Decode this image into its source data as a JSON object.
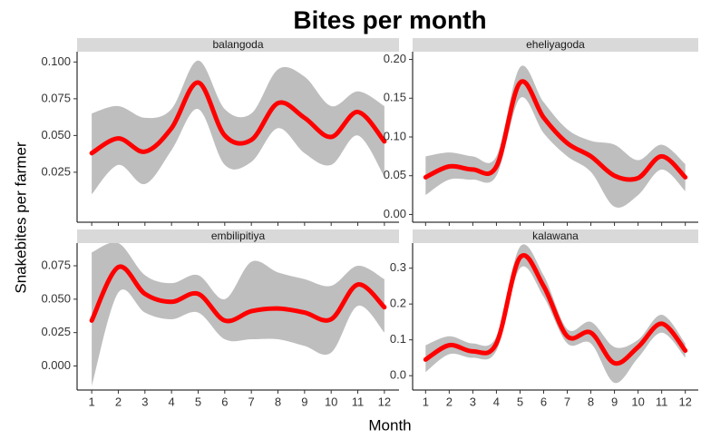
{
  "title": "Bites per month",
  "x_label": "Month",
  "y_label": "Snakebites per farmer",
  "chart_data": [
    {
      "type": "line",
      "title": "balangoda",
      "x": [
        1,
        2,
        3,
        4,
        5,
        6,
        7,
        8,
        9,
        10,
        11,
        12
      ],
      "xlim": [
        0.45,
        12.55
      ],
      "xticks": [
        1,
        2,
        3,
        4,
        5,
        6,
        7,
        8,
        9,
        10,
        11,
        12
      ],
      "ylim": [
        -0.009,
        0.107
      ],
      "yticks": [
        0.025,
        {
          "value": 0.05,
          "label": "0.050"
        },
        0.075,
        {
          "value": 0.1,
          "label": "0.100"
        }
      ],
      "band_color": "#bebebe",
      "series": [
        {
          "color": "#ff0000",
          "values": [
            0.038,
            0.048,
            0.039,
            0.055,
            0.086,
            0.05,
            0.047,
            0.072,
            0.062,
            0.049,
            0.066,
            0.046
          ],
          "lower": [
            0.01,
            0.03,
            0.017,
            0.04,
            0.068,
            0.03,
            0.032,
            0.055,
            0.038,
            0.03,
            0.05,
            0.022
          ],
          "upper": [
            0.065,
            0.07,
            0.062,
            0.068,
            0.101,
            0.068,
            0.065,
            0.095,
            0.09,
            0.07,
            0.08,
            0.07
          ]
        }
      ]
    },
    {
      "type": "line",
      "title": "eheliyagoda",
      "x": [
        1,
        2,
        3,
        4,
        5,
        6,
        7,
        8,
        9,
        10,
        11,
        12
      ],
      "xlim": [
        0.45,
        12.55
      ],
      "xticks": [
        1,
        2,
        3,
        4,
        5,
        6,
        7,
        8,
        9,
        10,
        11,
        12
      ],
      "ylim": [
        -0.01,
        0.21
      ],
      "yticks": [
        {
          "value": 0,
          "label": "0.00"
        },
        0.05,
        {
          "value": 0.1,
          "label": "0.10"
        },
        0.15,
        {
          "value": 0.2,
          "label": "0.20"
        }
      ],
      "band_color": "#bebebe",
      "series": [
        {
          "color": "#ff0000",
          "values": [
            0.048,
            0.062,
            0.058,
            0.062,
            0.17,
            0.125,
            0.092,
            0.075,
            0.05,
            0.047,
            0.075,
            0.048
          ],
          "lower": [
            0.025,
            0.045,
            0.045,
            0.05,
            0.15,
            0.105,
            0.075,
            0.055,
            0.01,
            0.025,
            0.058,
            0.03
          ],
          "upper": [
            0.075,
            0.08,
            0.075,
            0.075,
            0.19,
            0.145,
            0.11,
            0.095,
            0.09,
            0.07,
            0.09,
            0.065
          ]
        }
      ]
    },
    {
      "type": "line",
      "title": "embilipitiya",
      "x": [
        1,
        2,
        3,
        4,
        5,
        6,
        7,
        8,
        9,
        10,
        11,
        12
      ],
      "xlim": [
        0.45,
        12.55
      ],
      "xticks": [
        1,
        2,
        3,
        4,
        5,
        6,
        7,
        8,
        9,
        10,
        11,
        12
      ],
      "ylim": [
        -0.018,
        0.092
      ],
      "yticks": [
        {
          "value": 0,
          "label": "0.000"
        },
        0.025,
        {
          "value": 0.05,
          "label": "0.050"
        },
        0.075
      ],
      "band_color": "#bebebe",
      "series": [
        {
          "color": "#ff0000",
          "values": [
            0.034,
            0.074,
            0.054,
            0.048,
            0.054,
            0.034,
            0.041,
            0.043,
            0.04,
            0.035,
            0.061,
            0.044
          ],
          "lower": [
            -0.015,
            0.055,
            0.04,
            0.035,
            0.04,
            0.02,
            0.02,
            0.02,
            0.015,
            0.01,
            0.045,
            0.025
          ],
          "upper": [
            0.085,
            0.092,
            0.068,
            0.062,
            0.068,
            0.05,
            0.078,
            0.07,
            0.065,
            0.06,
            0.075,
            0.065
          ]
        }
      ]
    },
    {
      "type": "line",
      "title": "kalawana",
      "x": [
        1,
        2,
        3,
        4,
        5,
        6,
        7,
        8,
        9,
        10,
        11,
        12
      ],
      "xlim": [
        0.45,
        12.55
      ],
      "xticks": [
        1,
        2,
        3,
        4,
        5,
        6,
        7,
        8,
        9,
        10,
        11,
        12
      ],
      "ylim": [
        -0.04,
        0.37
      ],
      "yticks": [
        {
          "value": 0,
          "label": "0.0"
        },
        0.1,
        0.2,
        0.3
      ],
      "band_color": "#bebebe",
      "series": [
        {
          "color": "#ff0000",
          "values": [
            0.045,
            0.085,
            0.068,
            0.09,
            0.33,
            0.25,
            0.11,
            0.12,
            0.035,
            0.08,
            0.145,
            0.07
          ],
          "lower": [
            0.01,
            0.06,
            0.05,
            0.07,
            0.3,
            0.22,
            0.09,
            0.09,
            -0.02,
            0.05,
            0.12,
            0.05
          ],
          "upper": [
            0.085,
            0.11,
            0.09,
            0.11,
            0.36,
            0.28,
            0.13,
            0.15,
            0.08,
            0.1,
            0.17,
            0.09
          ]
        }
      ]
    }
  ]
}
